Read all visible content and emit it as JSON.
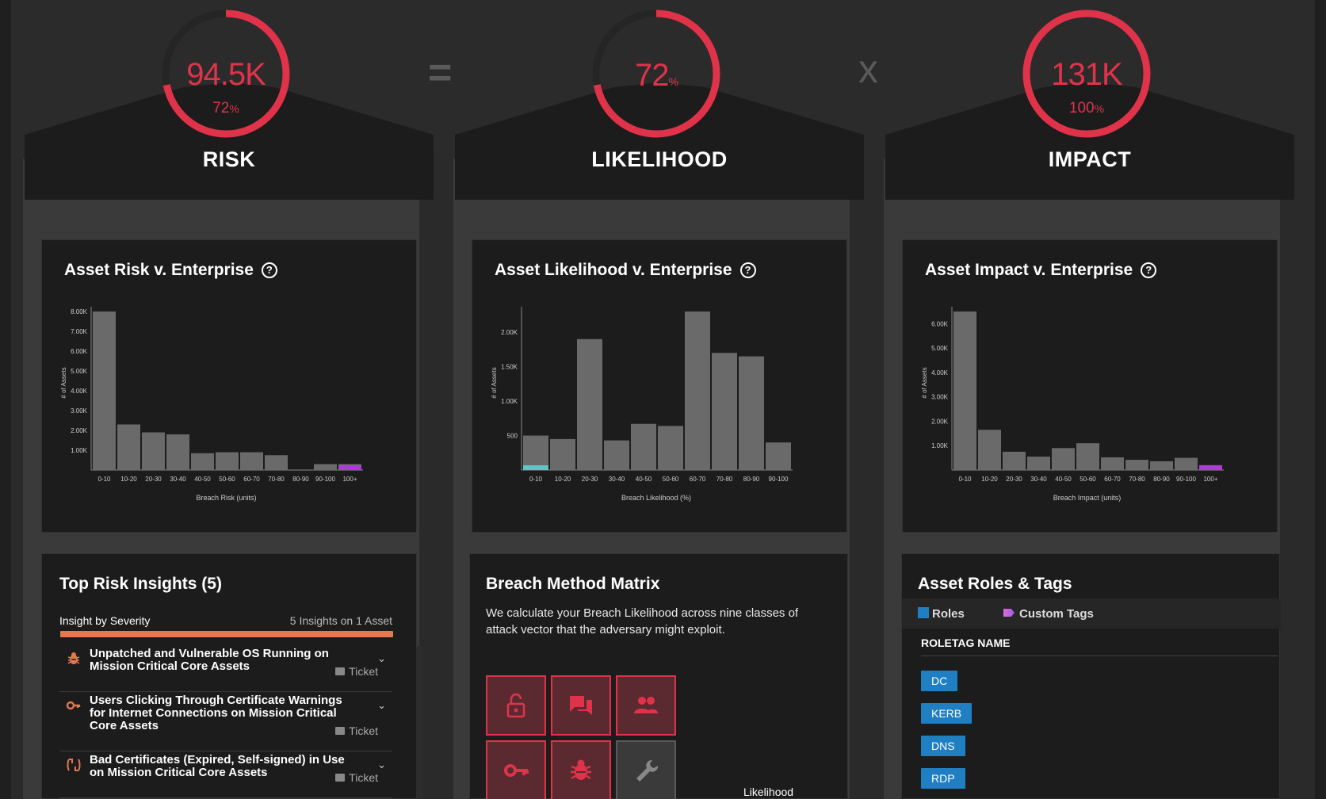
{
  "columns": {
    "risk": {
      "title": "RISK",
      "value": "94.5K",
      "percent": "72",
      "pct_symbol": "%",
      "fill": 0.72
    },
    "likelihood": {
      "title": "LIKELIHOOD",
      "value": "72",
      "pct_symbol": "%",
      "fill": 0.72
    },
    "impact": {
      "title": "IMPACT",
      "value": "131K",
      "percent": "100",
      "pct_symbol": "%",
      "fill": 1.0
    }
  },
  "operators": {
    "equals": "=",
    "times": "x"
  },
  "panels": {
    "risk_chart_title": "Asset Risk v. Enterprise",
    "likelihood_chart_title": "Asset Likelihood v. Enterprise",
    "impact_chart_title": "Asset Impact v. Enterprise",
    "help_glyph": "?"
  },
  "chart_data": [
    {
      "type": "bar",
      "title": "Asset Risk v. Enterprise",
      "xlabel": "Breach Risk (units)",
      "ylabel": "# of Assets",
      "categories": [
        "0-10",
        "10-20",
        "20-30",
        "30-40",
        "40-50",
        "50-60",
        "60-70",
        "70-80",
        "80-90",
        "90-100",
        "100+"
      ],
      "values": [
        8000,
        2300,
        1900,
        1800,
        850,
        900,
        900,
        750,
        0,
        300,
        300
      ],
      "highlight_index": 10,
      "highlight_color": "#b03ad8",
      "yticks": [
        "8.00K",
        "7.00K",
        "6.00K",
        "5.00K",
        "4.00K",
        "3.00K",
        "2.00K",
        "1.00K"
      ],
      "ylim": [
        0,
        8000
      ]
    },
    {
      "type": "bar",
      "title": "Asset Likelihood v. Enterprise",
      "xlabel": "Breach Likelihood (%)",
      "ylabel": "# of Assets",
      "categories": [
        "0-10",
        "10-20",
        "20-30",
        "30-40",
        "40-50",
        "50-60",
        "60-70",
        "70-80",
        "80-90",
        "90-100"
      ],
      "values": [
        500,
        450,
        1900,
        430,
        670,
        640,
        2300,
        1700,
        1650,
        400
      ],
      "highlight_index": 0,
      "highlight_color": "#5fc5c5",
      "highlight_value": 50,
      "yticks": [
        "2.00K",
        "1.50K",
        "1.00K",
        "500"
      ],
      "ylim": [
        0,
        2300
      ]
    },
    {
      "type": "bar",
      "title": "Asset Impact v. Enterprise",
      "xlabel": "Breach Impact (units)",
      "ylabel": "# of Assets",
      "categories": [
        "0-10",
        "10-20",
        "20-30",
        "30-40",
        "40-50",
        "50-60",
        "60-70",
        "70-80",
        "80-90",
        "90-100",
        "100+"
      ],
      "values": [
        6500,
        1650,
        750,
        550,
        900,
        1100,
        520,
        420,
        360,
        500,
        200
      ],
      "highlight_index": 10,
      "highlight_color": "#b03ad8",
      "yticks": [
        "6.00K",
        "5.00K",
        "4.00K",
        "3.00K",
        "2.00K",
        "1.00K"
      ],
      "ylim": [
        0,
        6500
      ]
    }
  ],
  "insights": {
    "title": "Top Risk Insights (5)",
    "severity_label": "Insight by Severity",
    "count_label": "5 Insights on 1 Asset",
    "ticket_label": "Ticket",
    "items": [
      {
        "icon": "bug-icon",
        "text": "Unpatched and Vulnerable OS Running on Mission Critical Core Assets"
      },
      {
        "icon": "key-icon",
        "text": "Users Clicking Through Certificate Warnings for Internet Connections on Mission Critical Core Assets"
      },
      {
        "icon": "certificate-icon",
        "text": "Bad Certificates (Expired, Self-signed) in Use on Mission Critical Core Assets"
      }
    ]
  },
  "breach_matrix": {
    "title": "Breach Method Matrix",
    "description": "We calculate your Breach Likelihood across nine classes of attack vector that the adversary might exploit.",
    "footer_label": "Likelihood"
  },
  "roles": {
    "title": "Asset Roles & Tags",
    "legend_roles": "Roles",
    "legend_tags": "Custom Tags",
    "column_header": "ROLETAG NAME",
    "items": [
      "DC",
      "KERB",
      "DNS",
      "RDP"
    ]
  },
  "colors": {
    "accent_red": "#e0334a",
    "bar_gray": "#6a6a6a",
    "severity_orange": "#e27a4e",
    "role_blue": "#1f7fc2"
  }
}
